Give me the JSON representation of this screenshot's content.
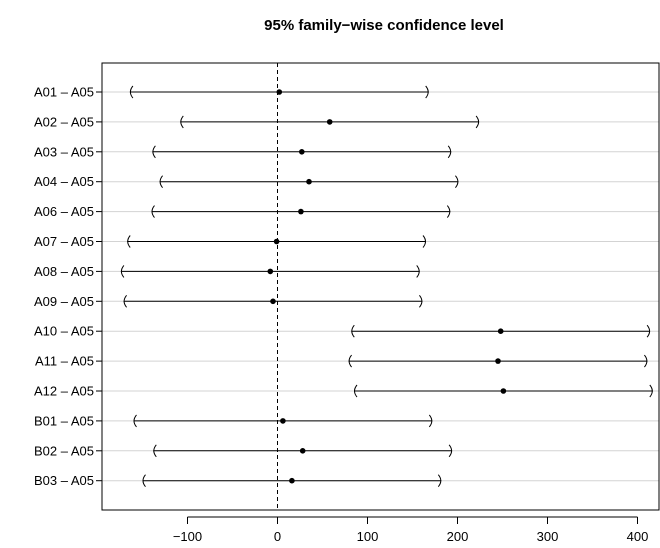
{
  "chart_data": {
    "type": "interval",
    "title": "95% family−wise confidence level",
    "xlabel": "",
    "ylabel": "",
    "xlim": [
      -195,
      425
    ],
    "x_ticks": [
      -100,
      0,
      100,
      200,
      300,
      400
    ],
    "x_tick_labels": [
      "−100",
      "0",
      "100",
      "200",
      "300",
      "400"
    ],
    "reference_line": 0,
    "grid": "horizontal",
    "comparisons": [
      {
        "label": "A01 – A05",
        "estimate": 2,
        "lower": -164,
        "upper": 168
      },
      {
        "label": "A02 – A05",
        "estimate": 58,
        "lower": -108,
        "upper": 224
      },
      {
        "label": "A03 – A05",
        "estimate": 27,
        "lower": -139,
        "upper": 193
      },
      {
        "label": "A04 – A05",
        "estimate": 35,
        "lower": -131,
        "upper": 201
      },
      {
        "label": "A06 – A05",
        "estimate": 26,
        "lower": -140,
        "upper": 192
      },
      {
        "label": "A07 – A05",
        "estimate": -1,
        "lower": -167,
        "upper": 165
      },
      {
        "label": "A08 – A05",
        "estimate": -8,
        "lower": -174,
        "upper": 158
      },
      {
        "label": "A09 – A05",
        "estimate": -5,
        "lower": -171,
        "upper": 161
      },
      {
        "label": "A10 – A05",
        "estimate": 248,
        "lower": 82,
        "upper": 414
      },
      {
        "label": "A11 – A05",
        "estimate": 245,
        "lower": 79,
        "upper": 411
      },
      {
        "label": "A12 – A05",
        "estimate": 251,
        "lower": 85,
        "upper": 417
      },
      {
        "label": "B01 – A05",
        "estimate": 6,
        "lower": -160,
        "upper": 172
      },
      {
        "label": "B02 – A05",
        "estimate": 28,
        "lower": -138,
        "upper": 194
      },
      {
        "label": "B03 – A05",
        "estimate": 16,
        "lower": -150,
        "upper": 182
      }
    ]
  }
}
